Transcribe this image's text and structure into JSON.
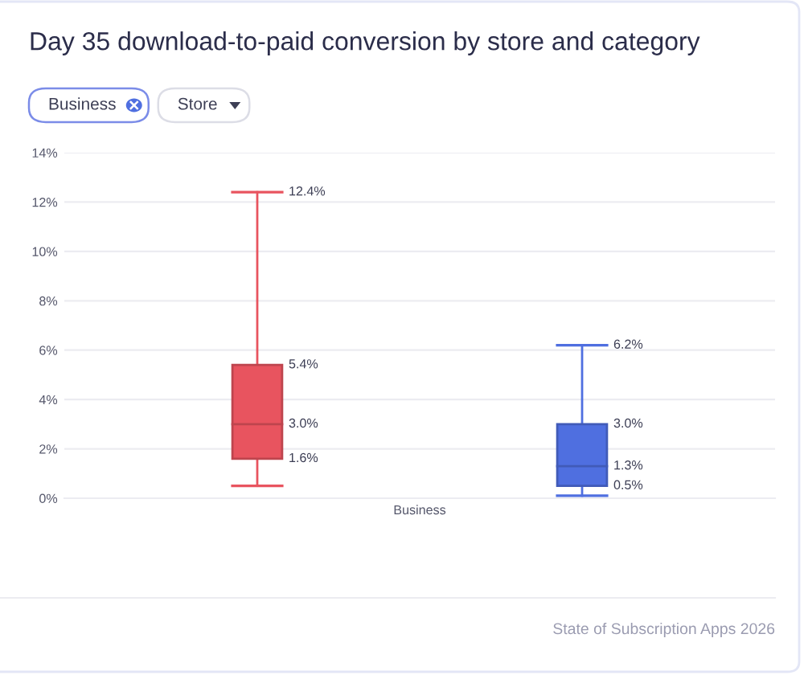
{
  "chart_data": {
    "type": "box",
    "title": "Day 35 download-to-paid conversion by store and category",
    "categories": [
      null,
      null
    ],
    "xlabel": "Business",
    "boxes": [
      {
        "low": 0.5,
        "q1": 1.6,
        "median": 3.0,
        "q3": 5.4,
        "high": 12.4
      },
      {
        "low": 0.1,
        "q1": 0.5,
        "median": 1.3,
        "q3": 3.0,
        "high": 6.2
      }
    ],
    "colors": [
      "#e8545f",
      "#4f6fe0"
    ],
    "value_labels": [
      [
        null,
        "1.6%",
        "3.0%",
        "5.4%",
        "12.4%"
      ],
      [
        null,
        "0.5%",
        "1.3%",
        "3.0%",
        "6.2%"
      ]
    ],
    "ylim": [
      0,
      14
    ],
    "yticks": [
      {
        "value": 0,
        "label": "0%"
      },
      {
        "value": 2,
        "label": "2%"
      },
      {
        "value": 4,
        "label": "4%"
      },
      {
        "value": 6,
        "label": "6%"
      },
      {
        "value": 8,
        "label": "8%"
      },
      {
        "value": 10,
        "label": "10%"
      },
      {
        "value": 12,
        "label": "12%"
      },
      {
        "value": 14,
        "label": "14%"
      }
    ],
    "grid": "y",
    "annotations": [
      "Business",
      "Store",
      "State of Subscription Apps 2026"
    ]
  }
}
